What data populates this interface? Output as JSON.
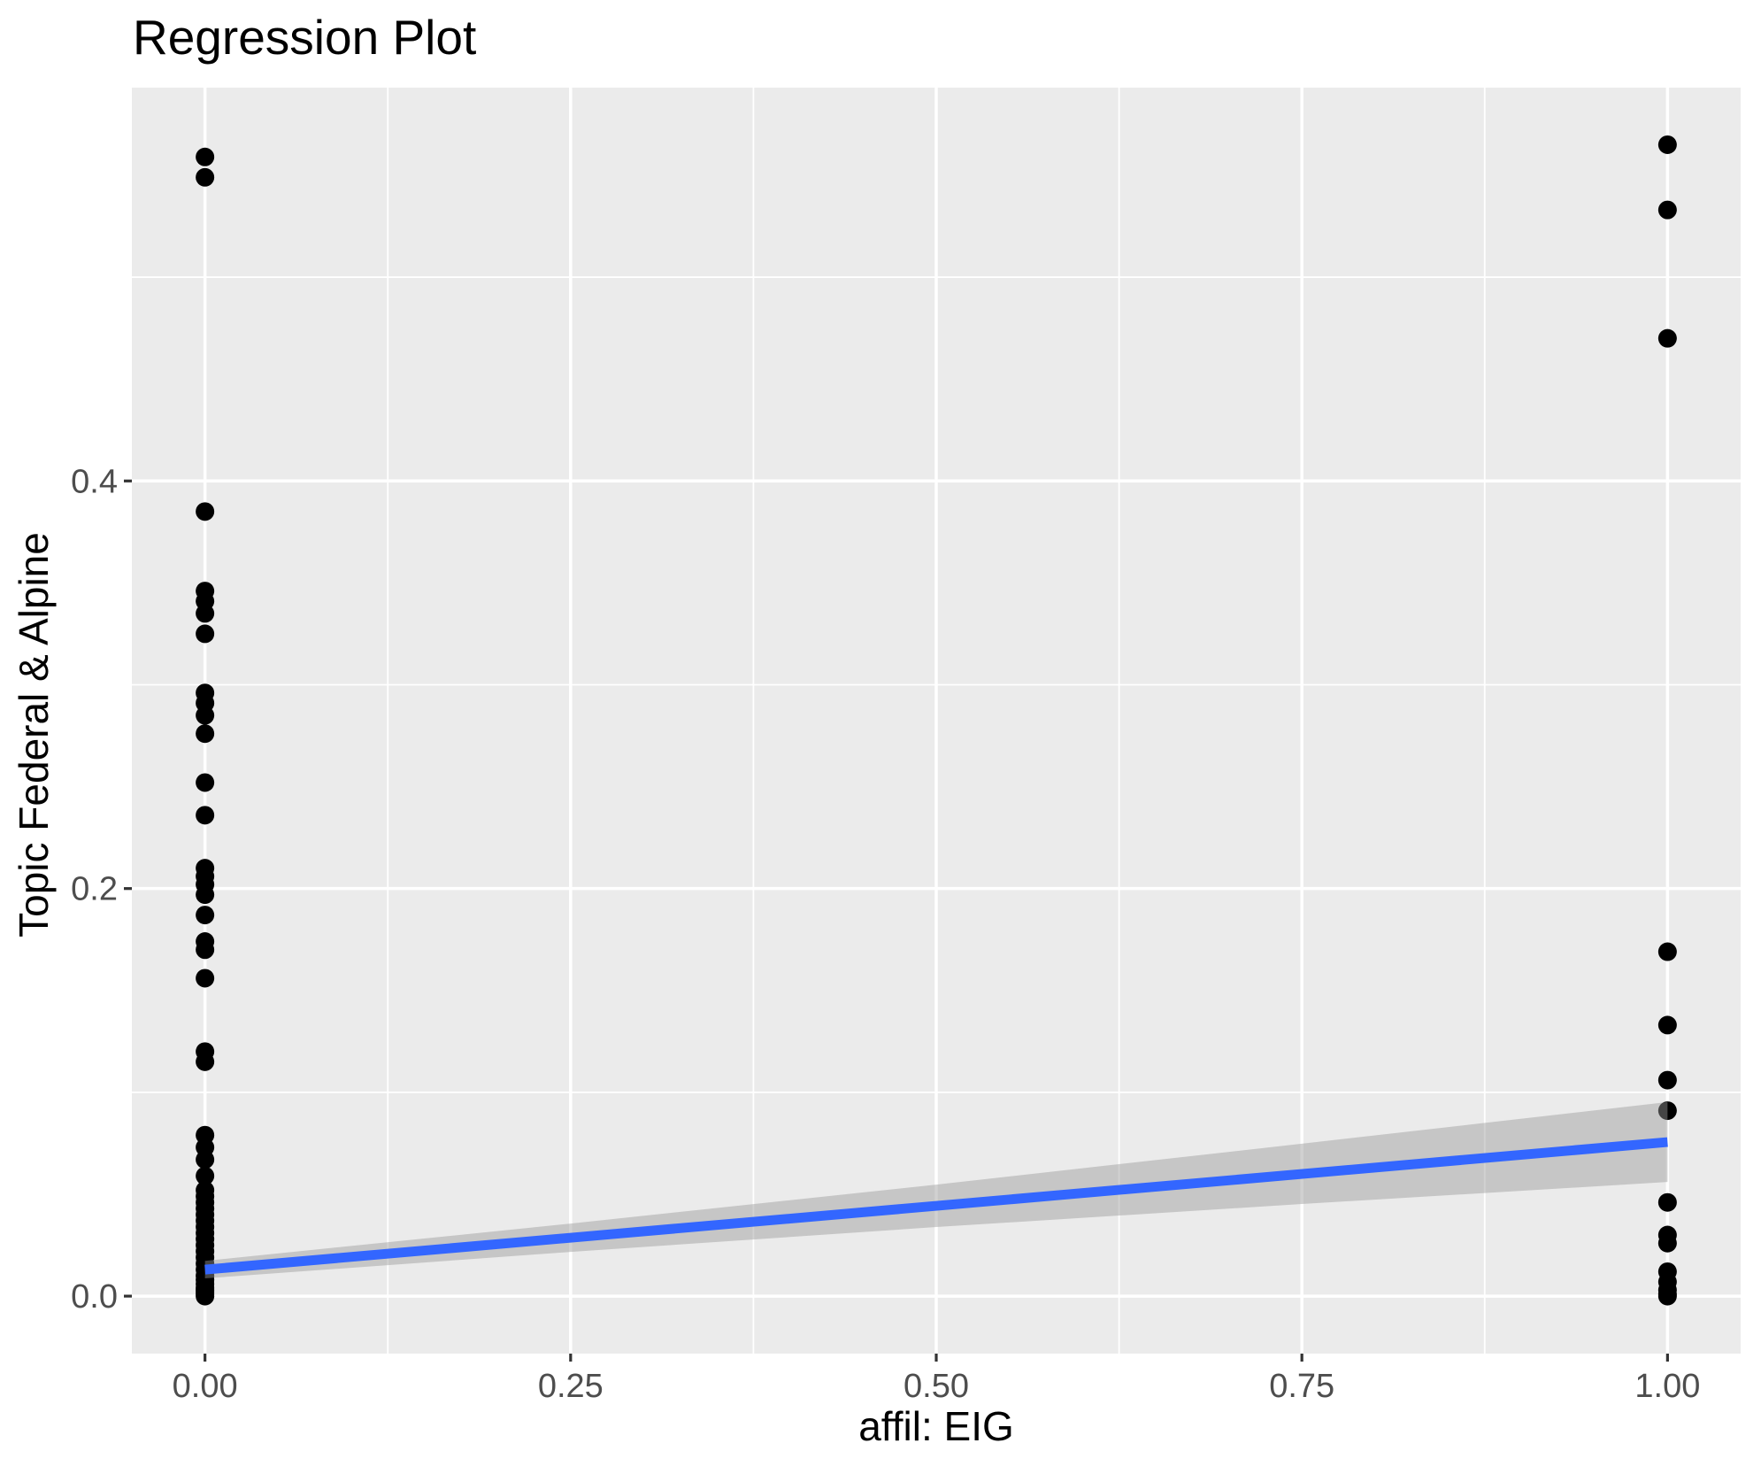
{
  "title": "Regression Plot",
  "colors": {
    "panel_bg": "#EBEBEB",
    "grid_major": "#FFFFFF",
    "grid_minor": "#FFFFFF",
    "point": "#000000",
    "regression_line": "#3366FF",
    "confidence_band": "#999999",
    "tick_label": "#4D4D4D",
    "tick_mark": "#333333",
    "title_text": "#000000"
  },
  "chart_data": {
    "type": "scatter",
    "title": "Regression Plot",
    "xlabel": "affil: EIG",
    "ylabel": "Topic Federal & Alpine",
    "xlim": [
      -0.05,
      1.05
    ],
    "ylim": [
      -0.0282,
      0.593
    ],
    "grid": true,
    "legend_position": "none",
    "x_ticks": [
      {
        "value": 0.0,
        "label": "0.00"
      },
      {
        "value": 0.25,
        "label": "0.25"
      },
      {
        "value": 0.5,
        "label": "0.50"
      },
      {
        "value": 0.75,
        "label": "0.75"
      },
      {
        "value": 1.0,
        "label": "1.00"
      }
    ],
    "y_ticks": [
      {
        "value": 0.0,
        "label": "0.0"
      },
      {
        "value": 0.2,
        "label": "0.2"
      },
      {
        "value": 0.4,
        "label": "0.4"
      }
    ],
    "x_minor_gridlines": [
      0.125,
      0.375,
      0.625,
      0.875
    ],
    "y_minor_gridlines": [
      0.1,
      0.3,
      0.5
    ],
    "series": [
      {
        "name": "affil EIG = 0",
        "x": 0,
        "y": [
          0.559,
          0.549,
          0.385,
          0.346,
          0.341,
          0.335,
          0.325,
          0.296,
          0.291,
          0.285,
          0.276,
          0.252,
          0.236,
          0.21,
          0.206,
          0.202,
          0.197,
          0.187,
          0.174,
          0.17,
          0.156,
          0.12,
          0.115,
          0.079,
          0.073,
          0.067,
          0.059,
          0.052,
          0.049,
          0.046,
          0.043,
          0.04,
          0.037,
          0.034,
          0.031,
          0.028,
          0.025,
          0.022,
          0.019,
          0.016,
          0.013,
          0.01,
          0.008,
          0.006,
          0.004,
          0.003,
          0.002,
          0.001,
          0.0
        ]
      },
      {
        "name": "affil EIG = 1",
        "x": 1,
        "y": [
          0.565,
          0.533,
          0.47,
          0.169,
          0.133,
          0.106,
          0.091,
          0.046,
          0.03,
          0.026,
          0.012,
          0.007,
          0.003,
          0.001,
          0.0
        ]
      }
    ],
    "regression_line": {
      "x": [
        0,
        1
      ],
      "y": [
        0.013,
        0.0756
      ]
    },
    "confidence_band": {
      "x": [
        0,
        0.25,
        0.5,
        0.75,
        1
      ],
      "upper": [
        0.0173,
        0.0356,
        0.0547,
        0.0748,
        0.0952
      ],
      "lower": [
        0.0087,
        0.0217,
        0.0339,
        0.0452,
        0.056
      ]
    }
  }
}
